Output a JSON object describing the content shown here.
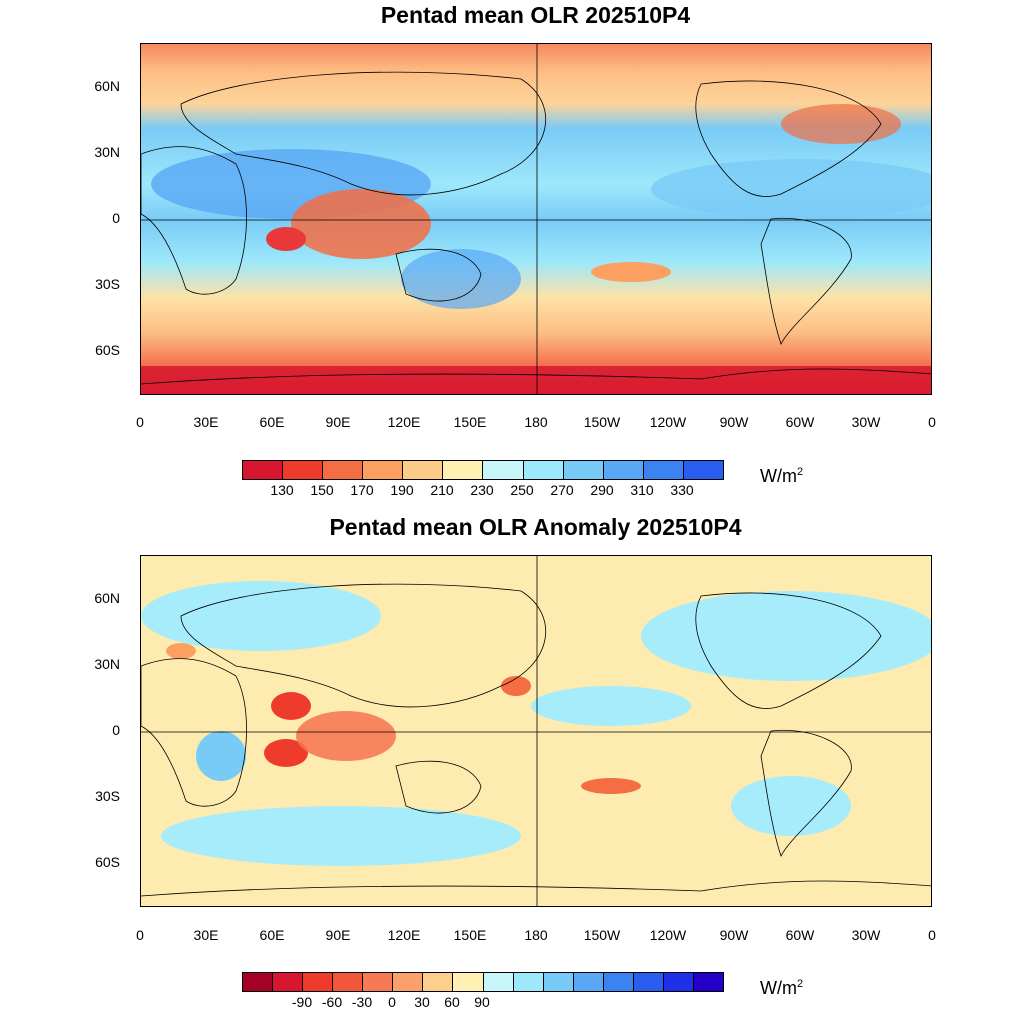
{
  "maps": [
    {
      "title": "Pentad mean OLR 202510P4",
      "lat_labels": [
        "60N",
        "30N",
        "0",
        "30S",
        "60S"
      ],
      "lon_labels": [
        "0",
        "30E",
        "60E",
        "90E",
        "120E",
        "150E",
        "180",
        "150W",
        "120W",
        "90W",
        "60W",
        "30W",
        "0"
      ],
      "colorbar": {
        "colors": [
          "#d7172f",
          "#ef3b2c",
          "#f46d43",
          "#fca062",
          "#fdcc8a",
          "#fff1b3",
          "#c8f7fb",
          "#9ee8fb",
          "#79cbf7",
          "#59a8f5",
          "#3b82f2",
          "#2a5ef0"
        ],
        "labels": [
          "130",
          "150",
          "170",
          "190",
          "210",
          "230",
          "250",
          "270",
          "290",
          "310",
          "330"
        ],
        "unit": "W/m",
        "unit_sup": "2"
      },
      "region_colors": {
        "polar_low": "#e8383a",
        "mid_lat": "#fdbe84",
        "subtropic": "#9ee8fb",
        "tropic_dry": "#79cbf7",
        "convective": "#f26a4a"
      }
    },
    {
      "title": "Pentad mean OLR Anomaly 202510P4",
      "lat_labels": [
        "60N",
        "30N",
        "0",
        "30S",
        "60S"
      ],
      "lon_labels": [
        "0",
        "30E",
        "60E",
        "90E",
        "120E",
        "150E",
        "180",
        "150W",
        "120W",
        "90W",
        "60W",
        "30W",
        "0"
      ],
      "colorbar": {
        "colors": [
          "#a50026",
          "#d7172f",
          "#ef3b2c",
          "#f4563b",
          "#f67a55",
          "#fba06b",
          "#fdcf8c",
          "#fff1b3",
          "#c8f7fb",
          "#9ee8fb",
          "#79cbf7",
          "#59a8f5",
          "#3b82f2",
          "#2a5ef0",
          "#1e30e8",
          "#2200c8"
        ],
        "labels": [
          "-90",
          "-60",
          "-30",
          "0",
          "30",
          "60",
          "90"
        ],
        "unit": "W/m",
        "unit_sup": "2"
      },
      "region_colors": {
        "background": "#fdebb0",
        "positive": "#a6ecfb",
        "positive_strong": "#79cbf7",
        "negative": "#f6734f"
      }
    }
  ]
}
